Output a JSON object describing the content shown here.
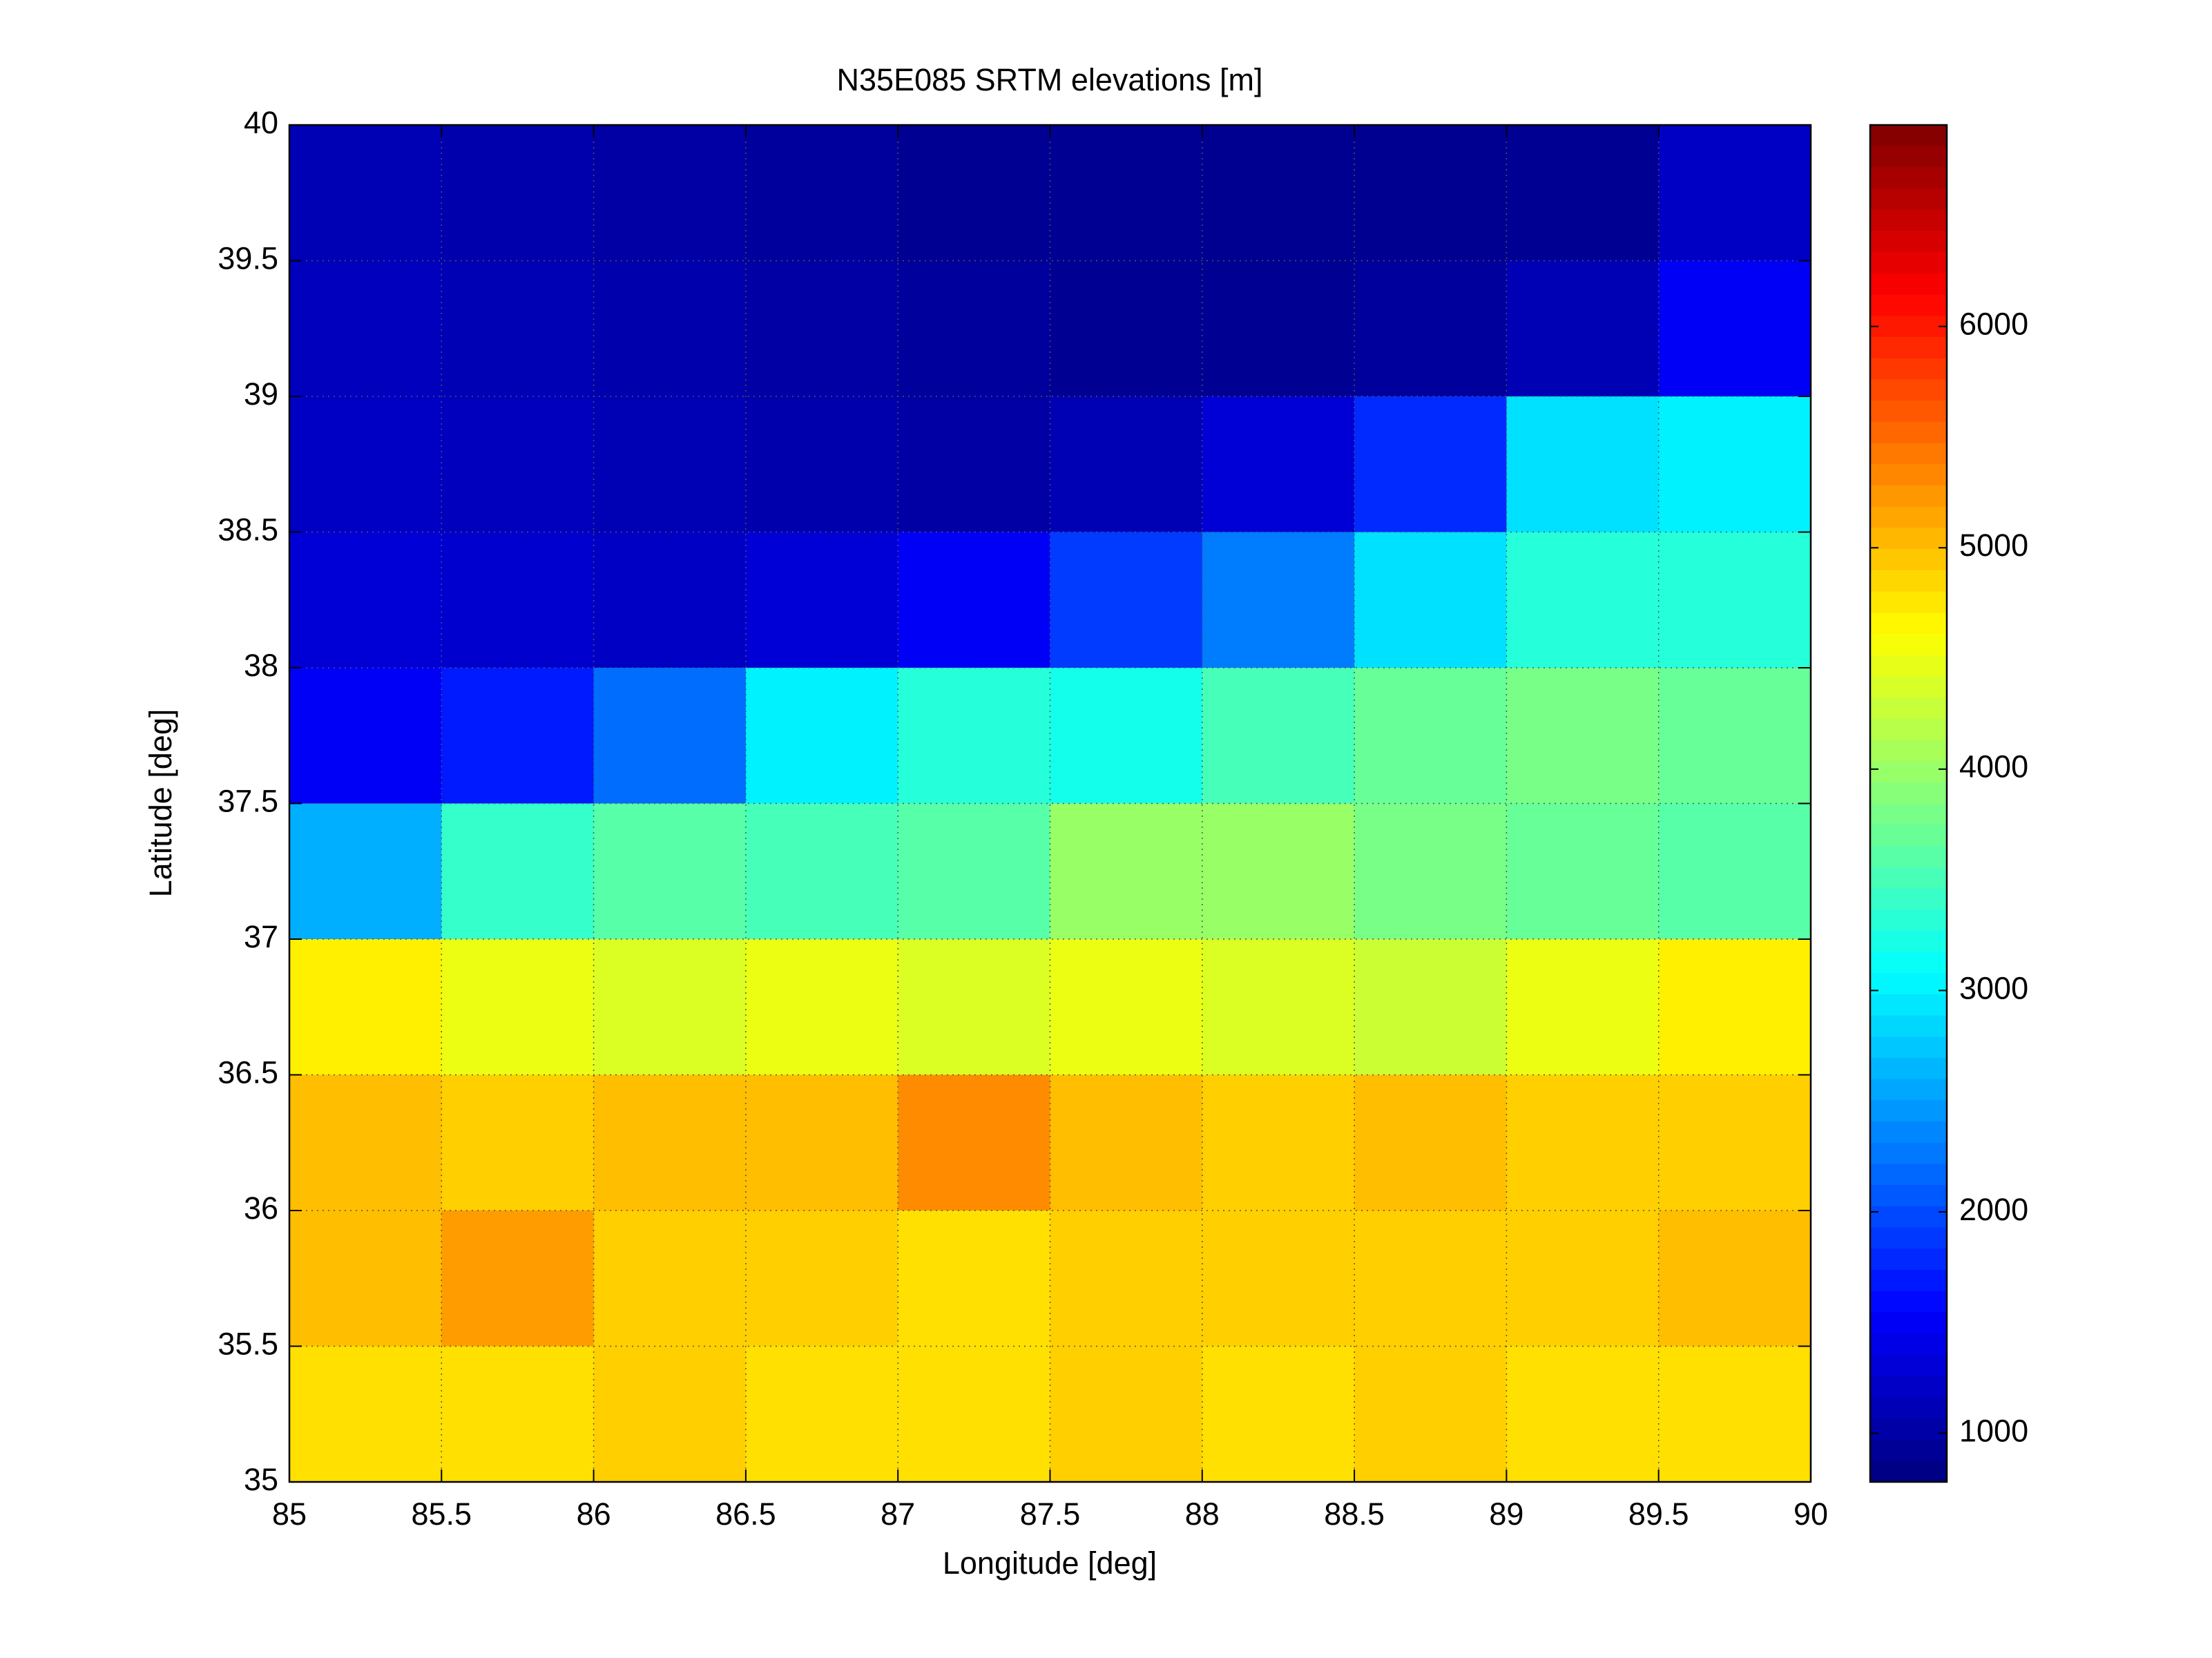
{
  "chart_data": {
    "type": "heatmap",
    "title": "N35E085 SRTM elevations [m]",
    "x_label": "Longitude [deg]",
    "y_label": "Latitude [deg]",
    "x": [
      85.25,
      85.75,
      86.25,
      86.75,
      87.25,
      87.75,
      88.25,
      88.75,
      89.25,
      89.75
    ],
    "y": [
      39.75,
      39.25,
      38.75,
      38.25,
      37.75,
      37.25,
      36.75,
      36.25,
      35.75,
      35.25
    ],
    "z": [
      [
        1100,
        1050,
        1000,
        950,
        900,
        900,
        880,
        880,
        900,
        1200
      ],
      [
        1150,
        1100,
        1050,
        1000,
        950,
        900,
        900,
        950,
        1100,
        1500
      ],
      [
        1200,
        1150,
        1100,
        1050,
        1000,
        1100,
        1300,
        1800,
        2900,
        3000
      ],
      [
        1300,
        1250,
        1200,
        1300,
        1500,
        1900,
        2300,
        2900,
        3300,
        3300
      ],
      [
        1500,
        1700,
        2200,
        3000,
        3300,
        3200,
        3500,
        3700,
        3800,
        3700
      ],
      [
        2600,
        3400,
        3600,
        3500,
        3600,
        4000,
        4000,
        3800,
        3700,
        3600
      ],
      [
        4700,
        4500,
        4400,
        4500,
        4400,
        4500,
        4400,
        4300,
        4500,
        4700
      ],
      [
        5000,
        4900,
        5000,
        5000,
        5300,
        5000,
        4900,
        5000,
        4900,
        4900
      ],
      [
        5000,
        5200,
        4900,
        4900,
        4800,
        4900,
        4900,
        4900,
        4900,
        5000
      ],
      [
        4800,
        4800,
        4900,
        4800,
        4800,
        4900,
        4800,
        4900,
        4800,
        4800
      ]
    ],
    "xlim": [
      85,
      90
    ],
    "xticks": [
      85,
      85.5,
      86,
      86.5,
      87,
      87.5,
      88,
      88.5,
      89,
      89.5,
      90
    ],
    "ylim": [
      35,
      40
    ],
    "yticks": [
      35,
      35.5,
      36,
      36.5,
      37,
      37.5,
      38,
      38.5,
      39,
      39.5,
      40
    ],
    "clim": [
      780,
      6910
    ],
    "cticks": [
      1000,
      2000,
      3000,
      4000,
      5000,
      6000
    ],
    "colormap": "jet",
    "grid": true
  }
}
